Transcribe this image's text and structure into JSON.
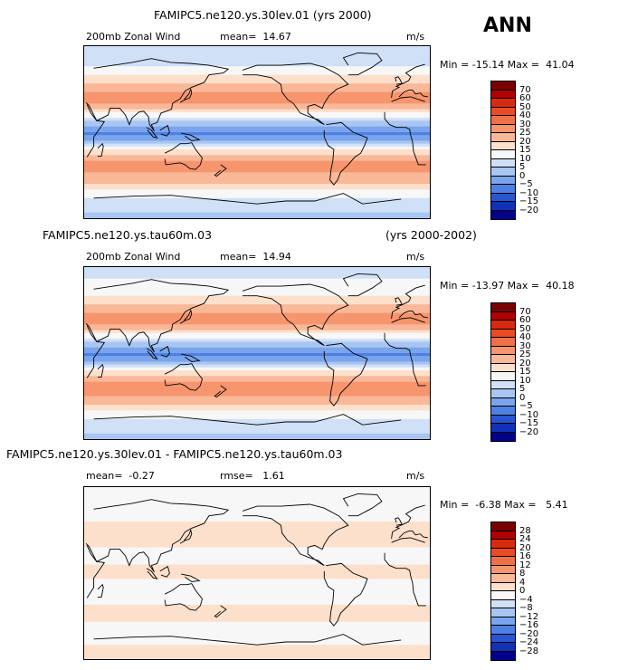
{
  "season_label": "ANN",
  "chart_data": [
    {
      "type": "heatmap",
      "title": "FAMIPC5.ne120.ys.30lev.01 (yrs 2000)",
      "variable_label": "200mb Zonal Wind",
      "stat1": "mean=  14.67",
      "stat2": "",
      "units": "m/s",
      "minmax": "Min = -15.14 Max =  41.04",
      "min": -15.14,
      "max": 41.04,
      "mean": 14.67,
      "levels": [
        -20,
        -15,
        -10,
        -5,
        0,
        5,
        10,
        15,
        20,
        25,
        30,
        40,
        50,
        60,
        70
      ],
      "level_labels": [
        "70",
        "60",
        "50",
        "40",
        "30",
        "25",
        "20",
        "15",
        "10",
        "5",
        "0",
        "−5",
        "−10",
        "−15",
        "−20"
      ],
      "colors": [
        "#7a0000",
        "#b00000",
        "#d82a10",
        "#ec4a25",
        "#f27048",
        "#f6956e",
        "#f9b898",
        "#fde0cc",
        "#f7f7f7",
        "#cfe0f7",
        "#a9c6f2",
        "#7aa5ec",
        "#4f80e4",
        "#2a55d2",
        "#1131b8",
        "#00008a"
      ],
      "lat_zonal_mean": [
        {
          "lat": 90,
          "value": 7
        },
        {
          "lat": 70,
          "value": 10
        },
        {
          "lat": 55,
          "value": 17
        },
        {
          "lat": 40,
          "value": 27
        },
        {
          "lat": 30,
          "value": 26
        },
        {
          "lat": 20,
          "value": 14
        },
        {
          "lat": 10,
          "value": 3
        },
        {
          "lat": 0,
          "value": -6
        },
        {
          "lat": -10,
          "value": 0
        },
        {
          "lat": -20,
          "value": 17
        },
        {
          "lat": -35,
          "value": 28
        },
        {
          "lat": -50,
          "value": 22
        },
        {
          "lat": -65,
          "value": 11
        },
        {
          "lat": -80,
          "value": 6
        },
        {
          "lat": -90,
          "value": 4
        }
      ]
    },
    {
      "type": "heatmap",
      "title": "FAMIPC5.ne120.ys.tau60m.03",
      "title_right": "(yrs 2000-2002)",
      "variable_label": "200mb Zonal Wind",
      "stat1": "mean=  14.94",
      "stat2": "",
      "units": "m/s",
      "minmax": "Min = -13.97 Max =  40.18",
      "min": -13.97,
      "max": 40.18,
      "mean": 14.94,
      "levels": [
        -20,
        -15,
        -10,
        -5,
        0,
        5,
        10,
        15,
        20,
        25,
        30,
        40,
        50,
        60,
        70
      ],
      "level_labels": [
        "70",
        "60",
        "50",
        "40",
        "30",
        "25",
        "20",
        "15",
        "10",
        "5",
        "0",
        "−5",
        "−10",
        "−15",
        "−20"
      ],
      "colors": [
        "#7a0000",
        "#b00000",
        "#d82a10",
        "#ec4a25",
        "#f27048",
        "#f6956e",
        "#f9b898",
        "#fde0cc",
        "#f7f7f7",
        "#cfe0f7",
        "#a9c6f2",
        "#7aa5ec",
        "#4f80e4",
        "#2a55d2",
        "#1131b8",
        "#00008a"
      ],
      "lat_zonal_mean": [
        {
          "lat": 90,
          "value": 8
        },
        {
          "lat": 70,
          "value": 11
        },
        {
          "lat": 55,
          "value": 18
        },
        {
          "lat": 40,
          "value": 27
        },
        {
          "lat": 30,
          "value": 26
        },
        {
          "lat": 20,
          "value": 14
        },
        {
          "lat": 10,
          "value": 3
        },
        {
          "lat": 0,
          "value": -6
        },
        {
          "lat": -10,
          "value": 0
        },
        {
          "lat": -20,
          "value": 17
        },
        {
          "lat": -35,
          "value": 29
        },
        {
          "lat": -50,
          "value": 23
        },
        {
          "lat": -65,
          "value": 12
        },
        {
          "lat": -80,
          "value": 6
        },
        {
          "lat": -90,
          "value": 4
        }
      ]
    },
    {
      "type": "heatmap",
      "title": "FAMIPC5.ne120.ys.30lev.01 - FAMIPC5.ne120.ys.tau60m.03",
      "variable_label": "",
      "stat1": "mean=  -0.27",
      "stat2": "rmse=   1.61",
      "units": "m/s",
      "minmax": "Min =  -6.38 Max =   5.41",
      "min": -6.38,
      "max": 5.41,
      "mean": -0.27,
      "rmse": 1.61,
      "levels": [
        -28,
        -24,
        -20,
        -16,
        -12,
        -8,
        -4,
        0,
        4,
        8,
        12,
        16,
        20,
        24,
        28
      ],
      "level_labels": [
        "28",
        "24",
        "20",
        "16",
        "12",
        "8",
        "4",
        "0",
        "−4",
        "−8",
        "−12",
        "−16",
        "−20",
        "−24",
        "−28"
      ],
      "colors": [
        "#7a0000",
        "#b00000",
        "#d82a10",
        "#ec4a25",
        "#f27048",
        "#f6956e",
        "#f9b898",
        "#fde0cc",
        "#f7f7f7",
        "#cfe0f7",
        "#a9c6f2",
        "#7aa5ec",
        "#4f80e4",
        "#2a55d2",
        "#1131b8",
        "#00008a"
      ],
      "lat_zonal_mean": [
        {
          "lat": 90,
          "value": -1
        },
        {
          "lat": 60,
          "value": -0.5
        },
        {
          "lat": 40,
          "value": 1
        },
        {
          "lat": 20,
          "value": -0.5
        },
        {
          "lat": 0,
          "value": 0.5
        },
        {
          "lat": -20,
          "value": -1
        },
        {
          "lat": -40,
          "value": 0.5
        },
        {
          "lat": -60,
          "value": -0.5
        },
        {
          "lat": -90,
          "value": 0.5
        }
      ]
    }
  ]
}
